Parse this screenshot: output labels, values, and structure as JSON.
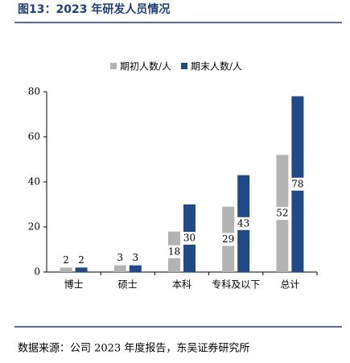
{
  "chart_data": {
    "type": "bar",
    "title": "图13：2023 年研发人员情况",
    "categories": [
      "博士",
      "硕士",
      "本科",
      "专科及以下",
      "总计"
    ],
    "series": [
      {
        "name": "期初人数/人",
        "color": "#b3b3b3",
        "values": [
          2,
          3,
          18,
          29,
          52
        ]
      },
      {
        "name": "期末人数/人",
        "color": "#1f4a86",
        "values": [
          2,
          3,
          30,
          43,
          78
        ]
      }
    ],
    "ylim": [
      0,
      80
    ],
    "yticks": [
      0,
      20,
      40,
      60,
      80
    ],
    "source": "数据来源：公司 2023 年度报告，东吴证券研究所"
  }
}
